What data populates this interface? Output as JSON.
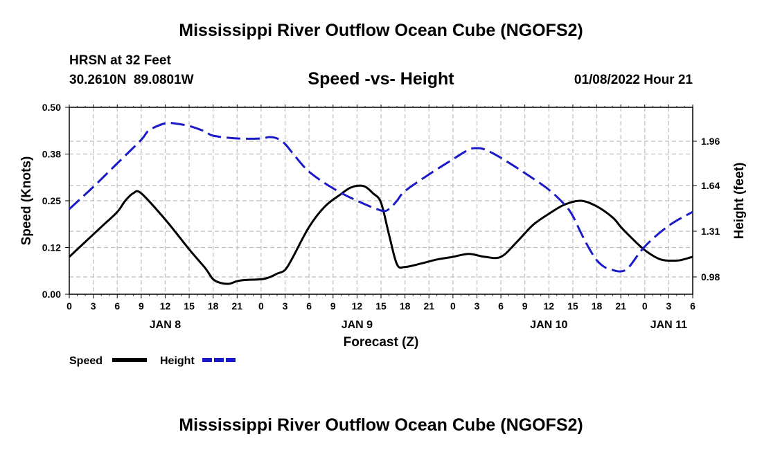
{
  "header": {
    "title_top": "Mississippi River Outflow Ocean Cube (NGOFS2)",
    "station": "HRSN at 32 Feet",
    "coords": "30.2610N  89.0801W",
    "subtitle": "Speed -vs- Height",
    "datetime": "01/08/2022 Hour 21",
    "title_bottom": "Mississippi River Outflow Ocean Cube (NGOFS2)"
  },
  "legend": {
    "speed_label": "Speed",
    "height_label": "Height"
  },
  "chart_data": {
    "type": "line",
    "title": "Speed -vs- Height",
    "xlabel": "Forecast (Z)",
    "ylabel": "Speed (Knots)",
    "y2label": "Height (feet)",
    "x_range_hours": [
      0,
      78
    ],
    "ylim": [
      0,
      0.5
    ],
    "y2lim": [
      0.855,
      2.205
    ],
    "yticks": [
      "0.00",
      "0.12",
      "0.25",
      "0.38",
      "0.50"
    ],
    "yticks_values": [
      0,
      0.125,
      0.25,
      0.375,
      0.5
    ],
    "y2ticks": [
      "0.98",
      "1.31",
      "1.64",
      "1.96"
    ],
    "y2ticks_values": [
      0.98,
      1.31,
      1.64,
      1.96
    ],
    "xticks": [
      "0",
      "3",
      "6",
      "9",
      "12",
      "15",
      "18",
      "21",
      "0",
      "3",
      "6",
      "9",
      "12",
      "15",
      "18",
      "21",
      "0",
      "3",
      "6",
      "9",
      "12",
      "15",
      "18",
      "21",
      "0",
      "3",
      "6"
    ],
    "date_labels": [
      {
        "label": "JAN 8",
        "hour": 12
      },
      {
        "label": "JAN 9",
        "hour": 36
      },
      {
        "label": "JAN 10",
        "hour": 60
      },
      {
        "label": "JAN 11",
        "hour": 75
      }
    ],
    "grid": true,
    "series": [
      {
        "name": "Speed",
        "axis": "left",
        "color": "#000000",
        "dash": "solid",
        "x": [
          0,
          2,
          4,
          6,
          7,
          8,
          9,
          12,
          15,
          17,
          18,
          19,
          20,
          21,
          22,
          24,
          25,
          26,
          27,
          28,
          30,
          32,
          34,
          35,
          36,
          37,
          38,
          39,
          40,
          41,
          42,
          44,
          46,
          48,
          50,
          52,
          54,
          56,
          58,
          60,
          62,
          64,
          66,
          68,
          69,
          70,
          72,
          74,
          76,
          77,
          78
        ],
        "values": [
          0.1,
          0.14,
          0.18,
          0.22,
          0.25,
          0.27,
          0.27,
          0.2,
          0.12,
          0.07,
          0.04,
          0.03,
          0.028,
          0.035,
          0.038,
          0.04,
          0.045,
          0.055,
          0.065,
          0.1,
          0.18,
          0.235,
          0.268,
          0.283,
          0.29,
          0.288,
          0.27,
          0.245,
          0.16,
          0.08,
          0.073,
          0.082,
          0.093,
          0.1,
          0.108,
          0.1,
          0.1,
          0.14,
          0.185,
          0.215,
          0.24,
          0.25,
          0.235,
          0.205,
          0.18,
          0.158,
          0.118,
          0.093,
          0.09,
          0.094,
          0.1
        ]
      },
      {
        "name": "Height",
        "axis": "right",
        "color": "#1a1ac8",
        "dash": "dashed",
        "x": [
          0,
          3,
          6,
          9,
          10,
          12,
          13,
          15,
          17,
          18,
          21,
          24,
          25,
          26,
          27,
          28,
          30,
          33,
          36,
          39,
          40,
          41,
          42,
          45,
          48,
          50,
          51,
          52,
          54,
          57,
          60,
          62,
          63,
          64,
          65,
          66,
          67,
          68,
          69,
          70,
          72,
          75,
          78
        ],
        "values": [
          1.47,
          1.63,
          1.8,
          1.97,
          2.04,
          2.09,
          2.09,
          2.07,
          2.03,
          2.0,
          1.98,
          1.98,
          1.99,
          1.98,
          1.94,
          1.87,
          1.74,
          1.62,
          1.53,
          1.46,
          1.47,
          1.53,
          1.6,
          1.72,
          1.83,
          1.9,
          1.91,
          1.9,
          1.84,
          1.73,
          1.61,
          1.5,
          1.42,
          1.3,
          1.19,
          1.1,
          1.05,
          1.03,
          1.02,
          1.05,
          1.2,
          1.35,
          1.45
        ]
      }
    ]
  }
}
